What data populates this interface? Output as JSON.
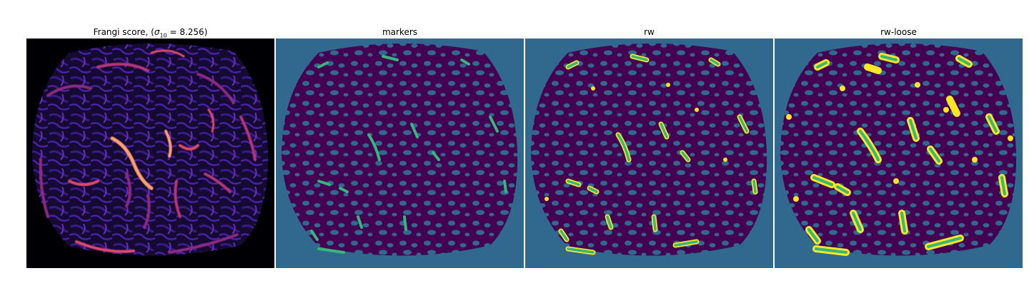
{
  "figure": {
    "panels": [
      {
        "title_prefix": "Frangi score, (",
        "title_sigma": "σ",
        "title_sub": "10",
        "title_suffix": " = 8.256)",
        "image": "frangi-score-map",
        "colormap": [
          "#000004",
          "#3b0f70",
          "#8c2981",
          "#de4968",
          "#fe9f6d",
          "#fcfdbf"
        ]
      },
      {
        "title": "markers",
        "image": "markers-label-map",
        "colors": {
          "background": "#31688e",
          "tissue": "#440154",
          "marker": "#35b779"
        }
      },
      {
        "title": "rw",
        "image": "random-walker-segmentation",
        "colors": {
          "background": "#31688e",
          "tissue": "#440154",
          "segment": "#fde725",
          "marker": "#35b779"
        }
      },
      {
        "title": "rw-loose",
        "image": "random-walker-loose-segmentation",
        "colors": {
          "background": "#31688e",
          "tissue": "#440154",
          "segment": "#fde725",
          "marker": "#35b779"
        }
      }
    ]
  }
}
